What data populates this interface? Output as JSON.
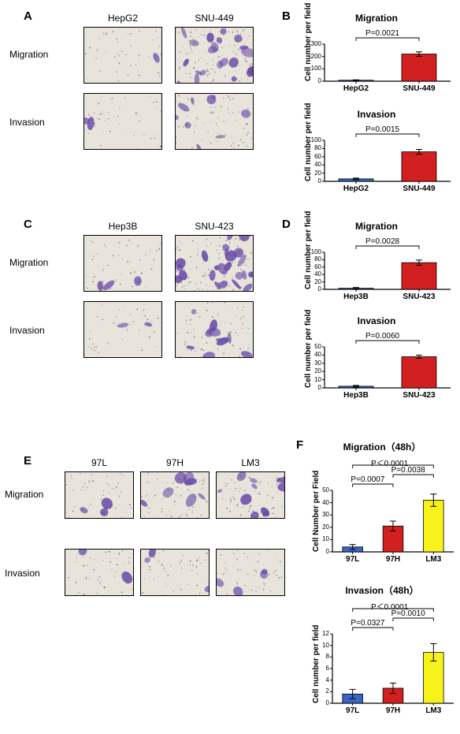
{
  "panelA": {
    "label": "A",
    "columns": [
      "HepG2",
      "SNU-449"
    ],
    "rows": [
      "Migration",
      "Invasion"
    ],
    "stain_color": "#6a4ba8",
    "bg_color": "#e8e4dc",
    "density": [
      [
        5,
        85
      ],
      [
        8,
        35
      ]
    ]
  },
  "panelB": {
    "label": "B",
    "charts": [
      {
        "title": "Migration",
        "ylabel": "Cell number per field",
        "categories": [
          "HepG2",
          "SNU-449"
        ],
        "values": [
          8,
          220
        ],
        "errors": [
          3,
          18
        ],
        "colors": [
          "#3a63c6",
          "#d21f1f"
        ],
        "ylim": [
          0,
          300
        ],
        "ytick_step": 100,
        "pvals": [
          {
            "text": "P=0.0021",
            "from": 0,
            "to": 1
          }
        ]
      },
      {
        "title": "Invasion",
        "ylabel": "Cell number per field",
        "categories": [
          "HepG2",
          "SNU-449"
        ],
        "values": [
          6,
          72
        ],
        "errors": [
          2,
          6
        ],
        "colors": [
          "#3a63c6",
          "#d21f1f"
        ],
        "ylim": [
          0,
          100
        ],
        "ytick_step": 20,
        "pvals": [
          {
            "text": "P=0.0015",
            "from": 0,
            "to": 1
          }
        ]
      }
    ]
  },
  "panelC": {
    "label": "C",
    "columns": [
      "Hep3B",
      "SNU-423"
    ],
    "rows": [
      "Migration",
      "Invasion"
    ],
    "stain_color": "#6a4ba8",
    "bg_color": "#e8e4dc",
    "density": [
      [
        10,
        90
      ],
      [
        6,
        40
      ]
    ]
  },
  "panelD": {
    "label": "D",
    "charts": [
      {
        "title": "Migration",
        "ylabel": "Cell number per field",
        "categories": [
          "Hep3B",
          "SNU-423"
        ],
        "values": [
          3,
          72
        ],
        "errors": [
          2,
          7
        ],
        "colors": [
          "#3a63c6",
          "#d21f1f"
        ],
        "ylim": [
          0,
          100
        ],
        "ytick_step": 20,
        "pvals": [
          {
            "text": "P=0.0028",
            "from": 0,
            "to": 1
          }
        ]
      },
      {
        "title": "Invasion",
        "ylabel": "Cell number per field",
        "categories": [
          "Hep3B",
          "SNU-423"
        ],
        "values": [
          2,
          38
        ],
        "errors": [
          1,
          2
        ],
        "colors": [
          "#3a63c6",
          "#d21f1f"
        ],
        "ylim": [
          0,
          50
        ],
        "ytick_step": 10,
        "pvals": [
          {
            "text": "P=0.0060",
            "from": 0,
            "to": 1
          }
        ]
      }
    ]
  },
  "panelE": {
    "label": "E",
    "columns": [
      "97L",
      "97H",
      "LM3"
    ],
    "rows": [
      "Migration",
      "Invasion"
    ],
    "stain_color": "#6a4ba8",
    "bg_color": "#e8e4dc",
    "density": [
      [
        12,
        28,
        38
      ],
      [
        8,
        10,
        14
      ]
    ]
  },
  "panelF": {
    "label": "F",
    "charts": [
      {
        "title": "Migration（48h）",
        "ylabel": "Cell Number per Field",
        "categories": [
          "97L",
          "97H",
          "LM3"
        ],
        "values": [
          4,
          21,
          42
        ],
        "errors": [
          2,
          4,
          5
        ],
        "colors": [
          "#3a63c6",
          "#d21f1f",
          "#f7f21a"
        ],
        "ylim": [
          0,
          50
        ],
        "ytick_step": 10,
        "pvals": [
          {
            "text": "P=0.0007",
            "from": 0,
            "to": 1
          },
          {
            "text": "P=0.0038",
            "from": 1,
            "to": 2
          },
          {
            "text": "P＜0.0001",
            "from": 0,
            "to": 2
          }
        ]
      },
      {
        "title": "Invasion（48h）",
        "ylabel": "Cell number per field",
        "categories": [
          "97L",
          "97H",
          "LM3"
        ],
        "values": [
          1.6,
          2.6,
          8.8
        ],
        "errors": [
          0.8,
          0.9,
          1.5
        ],
        "colors": [
          "#3a63c6",
          "#d21f1f",
          "#f7f21a"
        ],
        "ylim": [
          0,
          12
        ],
        "ytick_step": 2,
        "pvals": [
          {
            "text": "P=0.0327",
            "from": 0,
            "to": 1
          },
          {
            "text": "P=0.0010",
            "from": 1,
            "to": 2
          },
          {
            "text": "P＜0.0001",
            "from": 0,
            "to": 2
          }
        ]
      }
    ]
  }
}
